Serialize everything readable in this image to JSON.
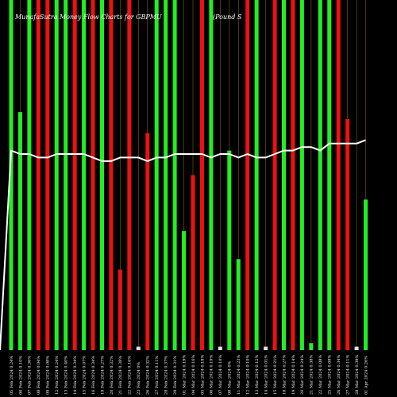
{
  "chart_data": {
    "type": "bar",
    "title": "MunafaSutra Money Flow Charts for GBPMU",
    "title_right": "(Pound S",
    "background": "#000000",
    "bar_colors": {
      "up": "#22ee22",
      "down": "#ee1111",
      "neutral": "#dddddd"
    },
    "line_color": "#ffffff",
    "vline_color": "#8a5a10",
    "ylim": [
      0,
      100
    ],
    "categories": [
      "05 Feb 2024 0.24%",
      "06 Feb 2024 0.10%",
      "07 Feb 2024 0.36%",
      "08 Feb 2024 0.04%",
      "09 Feb 2024 0.08%",
      "12 Feb 2024 0.24%",
      "13 Feb 2024 0.40%",
      "14 Feb 2024 0.34%",
      "15 Feb 2024 0.07%",
      "16 Feb 2024 0.34%",
      "19 Feb 2024 0.27%",
      "20 Feb 2024 0.32%",
      "21 Feb 2024 0.38%",
      "22 Feb 2024 0.16%",
      "23 Feb 2024 0%",
      "26 Feb 2024 0.32%",
      "27 Feb 2024 0.11%",
      "28 Feb 2024 0.37%",
      "29 Feb 2024 0.31%",
      "01 Mar 2024 0.19%",
      "04 Mar 2024 0.16%",
      "05 Mar 2024 0.18%",
      "06 Mar 2024 0.19%",
      "07 Mar 2024 0.10%",
      "08 Mar 2024 0%",
      "11 Mar 2024 0.23%",
      "12 Mar 2024 0.10%",
      "13 Mar 2024 0.12%",
      "14 Mar 2024 0.01%",
      "15 Mar 2024 0.21%",
      "18 Mar 2024 0.27%",
      "19 Mar 2024 0.14%",
      "20 Mar 2024 0.24%",
      "21 Mar 2024 0.38%",
      "22 Mar 2024 0.08%",
      "25 Mar 2024 0.08%",
      "26 Mar 2024 0.34%",
      "27 Mar 2024 0.11%",
      "28 Mar 2024 0.39%",
      "01 Apr 2024 0.26%"
    ],
    "values": [
      100,
      68,
      100,
      100,
      100,
      100,
      100,
      100,
      100,
      100,
      100,
      100,
      23,
      100,
      1,
      62,
      100,
      100,
      100,
      34,
      50,
      100,
      100,
      1,
      57,
      26,
      100,
      100,
      1,
      100,
      100,
      100,
      100,
      2,
      100,
      100,
      100,
      66,
      1,
      43
    ],
    "directions": [
      "up",
      "up",
      "up",
      "down",
      "down",
      "up",
      "up",
      "down",
      "up",
      "down",
      "up",
      "down",
      "down",
      "down",
      "neutral",
      "down",
      "up",
      "up",
      "up",
      "up",
      "down",
      "down",
      "up",
      "neutral",
      "up",
      "up",
      "down",
      "up",
      "neutral",
      "down",
      "up",
      "down",
      "up",
      "up",
      "up",
      "up",
      "down",
      "down",
      "neutral",
      "up"
    ],
    "line_values": [
      57,
      56,
      56,
      55,
      55,
      56,
      56,
      56,
      56,
      55,
      54,
      54,
      55,
      55,
      55,
      54,
      55,
      55,
      56,
      56,
      56,
      56,
      55,
      56,
      56,
      55,
      56,
      55,
      55,
      56,
      57,
      57,
      58,
      58,
      57,
      59,
      59,
      59,
      59,
      60
    ],
    "line_start_value": 0
  }
}
